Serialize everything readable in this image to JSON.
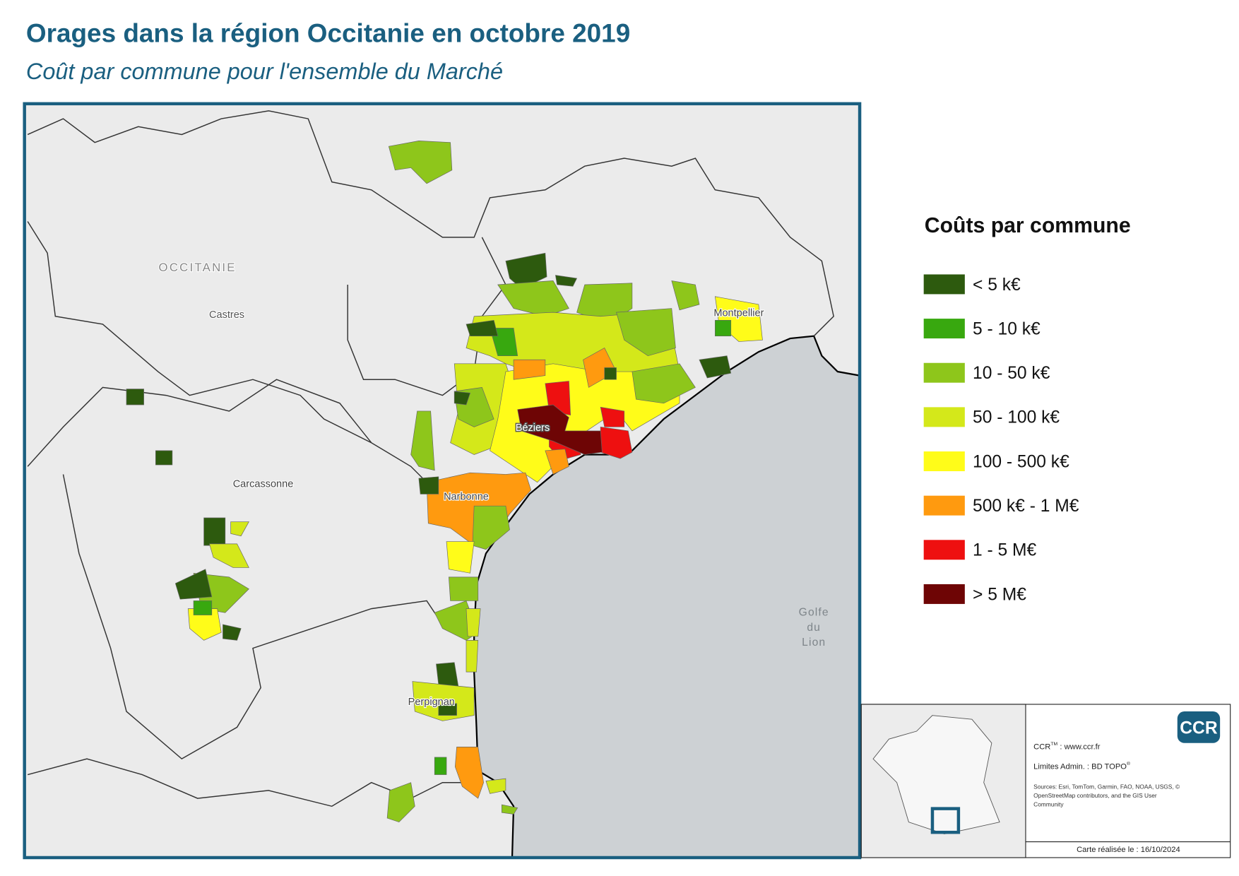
{
  "header": {
    "title": "Orages dans la région Occitanie en octobre 2019",
    "subtitle": "Coût par commune pour l'ensemble du Marché"
  },
  "map": {
    "places": [
      "OCCITANIE",
      "Castres",
      "Carcassonne",
      "Béziers",
      "Narbonne",
      "Montpellier",
      "Perpignan"
    ],
    "sea": [
      "Golfe",
      "du",
      "Lion"
    ]
  },
  "legend": {
    "title": "Coûts par commune",
    "items": [
      {
        "label": "< 5 k€",
        "color": "#2d5a0e"
      },
      {
        "label": "5 - 10 k€",
        "color": "#38a80f"
      },
      {
        "label": "10 - 50 k€",
        "color": "#8ec61b"
      },
      {
        "label": "50 - 100 k€",
        "color": "#d4e81a"
      },
      {
        "label": "100 - 500 k€",
        "color": "#fffc19"
      },
      {
        "label": "500 k€ - 1 M€",
        "color": "#ff9a0f"
      },
      {
        "label": "1 - 5 M€",
        "color": "#ee1010"
      },
      {
        "label": "> 5 M€",
        "color": "#6e0505"
      }
    ]
  },
  "info": {
    "logo": "CCR",
    "brand": "CCR",
    "brand_mark": "TM",
    "site": ": www.ccr.fr",
    "limits": "Limites Admin. : BD TOPO",
    "limits_mark": "®",
    "sources": [
      "Sources: Esri, TomTom, Garmin, FAO, NOAA, USGS, ©",
      "OpenStreetMap contributors, and the GIS User",
      "Community"
    ],
    "date": "Carte réalisée le : 16/10/2024"
  }
}
